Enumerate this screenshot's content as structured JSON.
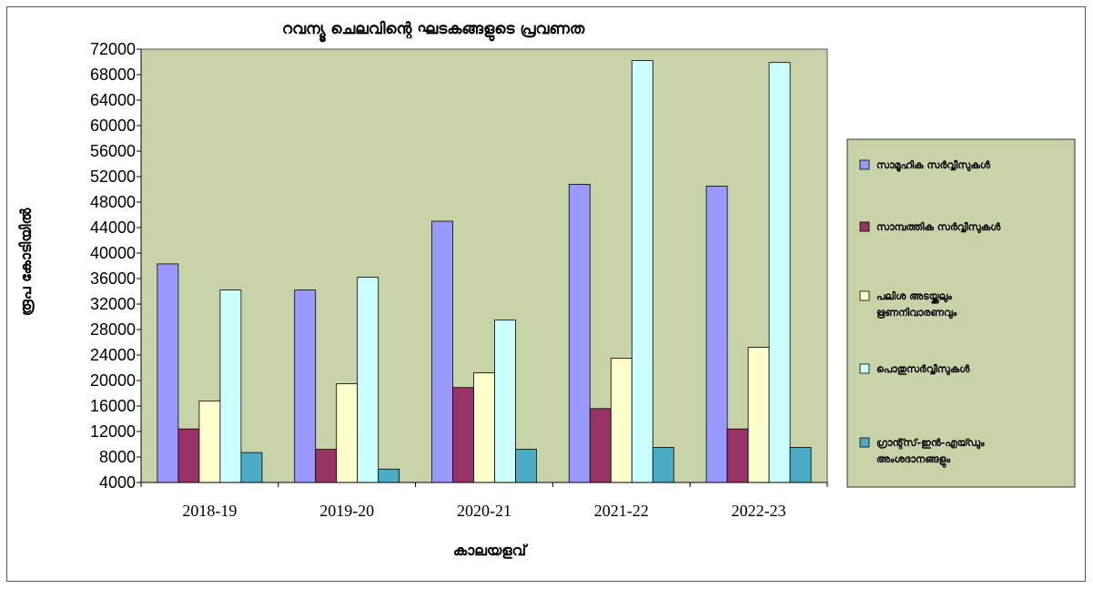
{
  "colors": {
    "plot_bg": "#C9D3A8",
    "legend_bg": "#C9D3A8",
    "series": [
      "#9999FF",
      "#993366",
      "#FFFFCC",
      "#CCFFFF",
      "#4BACC6"
    ]
  },
  "chart_data": {
    "type": "bar",
    "title": "റവന്യൂ ചെലവിന്റെ ഘടകങ്ങളുടെ പ്രവണത",
    "xlabel": "കാലയളവ്",
    "ylabel": "രൂപ കോടിയിൽ",
    "categories": [
      "2018-19",
      "2019-20",
      "2020-21",
      "2021-22",
      "2022-23"
    ],
    "ylim": [
      4000,
      72000
    ],
    "yticks": [
      4000,
      8000,
      12000,
      16000,
      20000,
      24000,
      28000,
      32000,
      36000,
      40000,
      44000,
      48000,
      52000,
      56000,
      60000,
      64000,
      68000,
      72000
    ],
    "legend_position": "right",
    "series": [
      {
        "name": "സാമൂഹിക സർവ്വീസുകൾ",
        "values": [
          38300,
          34200,
          45000,
          50800,
          50500
        ]
      },
      {
        "name": "സാമ്പത്തിക സർവ്വീസുകൾ",
        "values": [
          12400,
          9200,
          18900,
          15600,
          12400
        ]
      },
      {
        "name": "പലിശ അടയ്ക്കലും ഋണനിവാരണവും",
        "values": [
          16800,
          19500,
          21200,
          23500,
          25200
        ]
      },
      {
        "name": "പൊതുസർവ്വീസുകൾ",
        "values": [
          34200,
          36200,
          29500,
          70200,
          69900
        ]
      },
      {
        "name": "ഗ്രാന്റ്സ്-ഇൻ-എയ്ഡും അംശദാനങ്ങളും",
        "values": [
          8700,
          6100,
          9200,
          9500,
          9500
        ]
      }
    ]
  }
}
